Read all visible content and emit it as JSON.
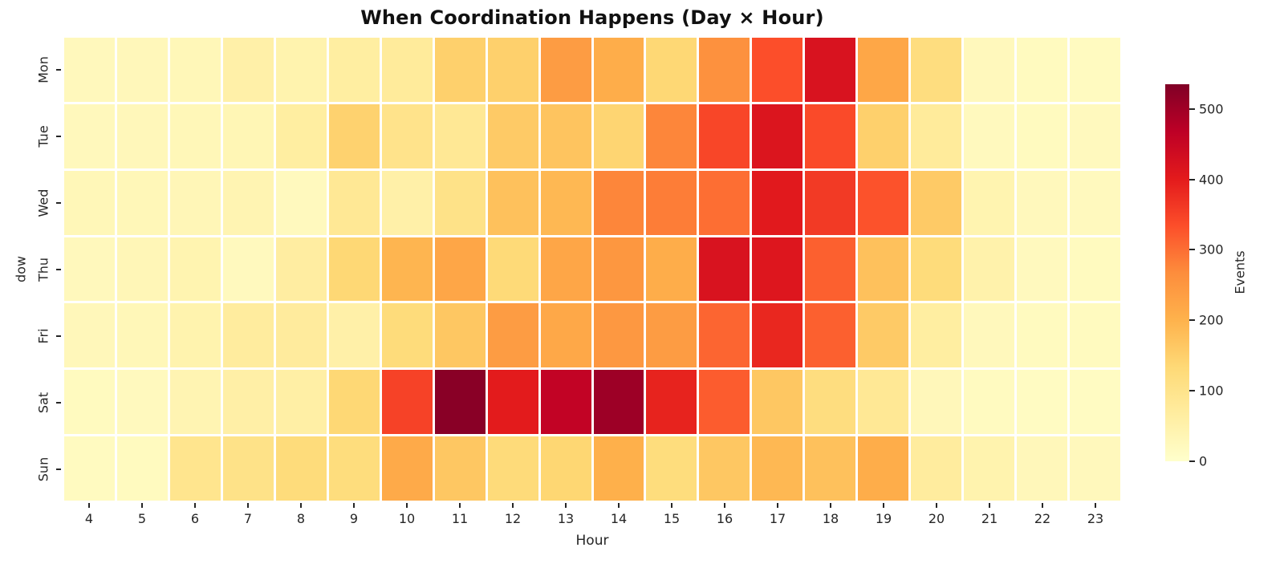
{
  "title": "When Coordination Happens (Day × Hour)",
  "chart_data": {
    "type": "heatmap",
    "title": "When Coordination Happens (Day × Hour)",
    "xlabel": "Hour",
    "ylabel": "dow",
    "x": [
      4,
      5,
      6,
      7,
      8,
      9,
      10,
      11,
      12,
      13,
      14,
      15,
      16,
      17,
      18,
      19,
      20,
      21,
      22,
      23
    ],
    "y": [
      "Mon",
      "Tue",
      "Wed",
      "Thu",
      "Fri",
      "Sat",
      "Sun"
    ],
    "values": [
      [
        25,
        28,
        30,
        55,
        45,
        65,
        75,
        150,
        150,
        240,
        210,
        135,
        260,
        335,
        420,
        220,
        120,
        25,
        20,
        18
      ],
      [
        25,
        28,
        30,
        35,
        65,
        145,
        100,
        85,
        160,
        170,
        140,
        275,
        345,
        415,
        340,
        150,
        75,
        22,
        20,
        22
      ],
      [
        30,
        30,
        32,
        40,
        22,
        85,
        55,
        105,
        175,
        190,
        275,
        285,
        300,
        405,
        360,
        330,
        160,
        42,
        25,
        22
      ],
      [
        25,
        32,
        42,
        22,
        66,
        135,
        195,
        222,
        130,
        222,
        250,
        210,
        420,
        412,
        315,
        175,
        125,
        50,
        22,
        20
      ],
      [
        28,
        30,
        45,
        70,
        72,
        55,
        125,
        165,
        240,
        218,
        248,
        240,
        310,
        385,
        315,
        160,
        65,
        25,
        20,
        20
      ],
      [
        20,
        22,
        40,
        58,
        60,
        135,
        350,
        525,
        400,
        460,
        503,
        390,
        320,
        165,
        120,
        85,
        28,
        18,
        15,
        15
      ],
      [
        18,
        20,
        95,
        105,
        125,
        122,
        215,
        165,
        127,
        138,
        205,
        122,
        165,
        190,
        175,
        210,
        70,
        45,
        28,
        25
      ]
    ],
    "vmin": 0,
    "vmax": 535,
    "grid": true,
    "grid_line_color": "#ffffff",
    "background": "#ffffff",
    "tick_color": "#262626",
    "colormap": {
      "name": "YlOrRd",
      "stops": [
        "#ffffcc",
        "#ffeda0",
        "#fed976",
        "#feb24c",
        "#fd8d3c",
        "#fc4e2a",
        "#e31a1c",
        "#bd0026",
        "#800026"
      ]
    },
    "colorbar": {
      "label": "Events",
      "ticks": [
        0,
        100,
        200,
        300,
        400,
        500
      ],
      "position": "right"
    }
  }
}
